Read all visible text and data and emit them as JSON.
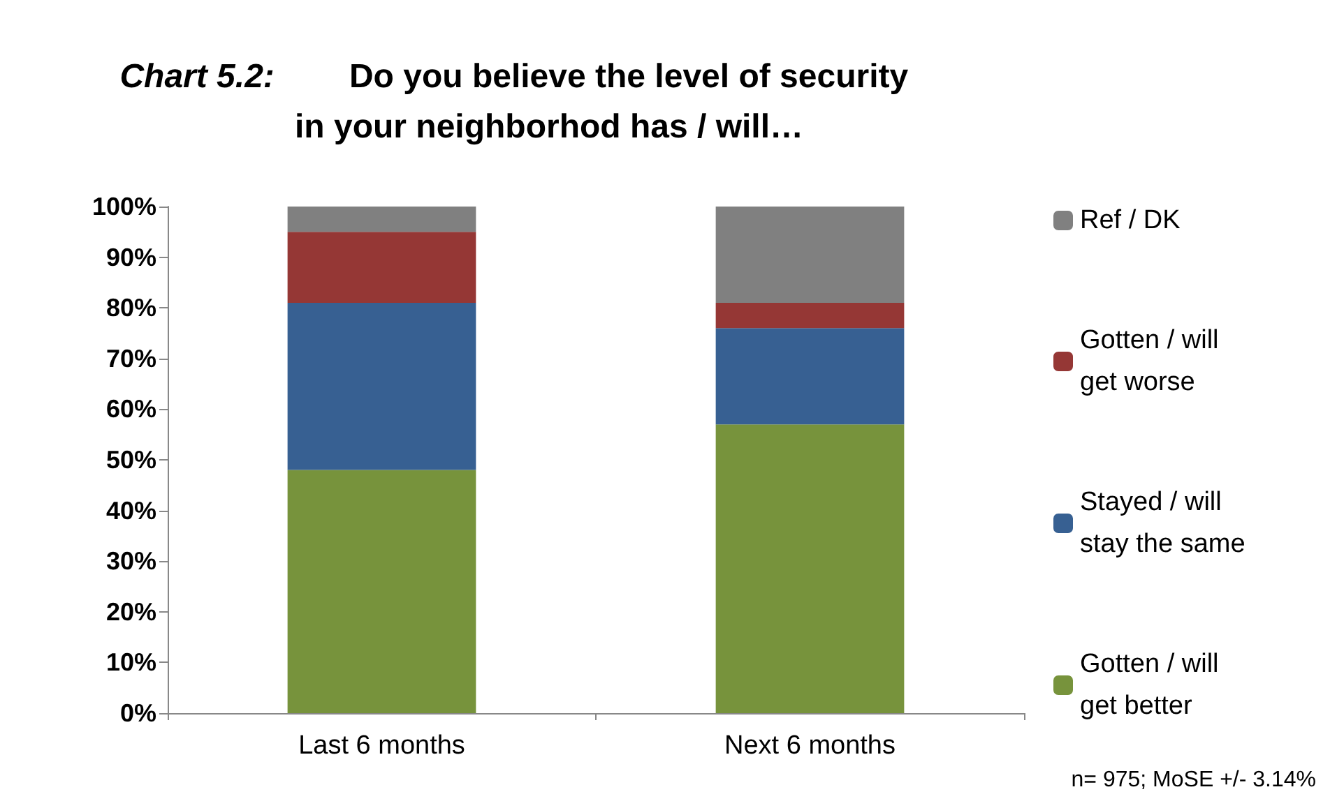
{
  "chart_data": {
    "type": "bar",
    "title": "Chart 5.2: Do you believe the level of security in your neighborhod has / will…",
    "categories": [
      "Last 6 months",
      "Next 6 months"
    ],
    "stacked": true,
    "series": [
      {
        "name": "Gotten / will get better",
        "color": "#77933c",
        "values": [
          48,
          57
        ]
      },
      {
        "name": "Stayed / will stay the same",
        "color": "#376092",
        "values": [
          33,
          19
        ]
      },
      {
        "name": "Gotten / will get worse",
        "color": "#953735",
        "values": [
          14,
          5
        ]
      },
      {
        "name": "Ref / DK",
        "color": "#808080",
        "values": [
          5,
          19
        ]
      }
    ],
    "ylim": [
      0,
      100
    ],
    "yticks": [
      {
        "value": 0,
        "label": "0%"
      },
      {
        "value": 10,
        "label": "10%"
      },
      {
        "value": 20,
        "label": "20%"
      },
      {
        "value": 30,
        "label": "30%"
      },
      {
        "value": 40,
        "label": "40%"
      },
      {
        "value": 50,
        "label": "50%"
      },
      {
        "value": 60,
        "label": "60%"
      },
      {
        "value": 70,
        "label": "70%"
      },
      {
        "value": 80,
        "label": "80%"
      },
      {
        "value": 90,
        "label": "90%"
      },
      {
        "value": 100,
        "label": "100%"
      }
    ],
    "grid": false,
    "legend": "right",
    "annotations": [
      "n= 975; MoSE +/- 3.14%"
    ]
  }
}
